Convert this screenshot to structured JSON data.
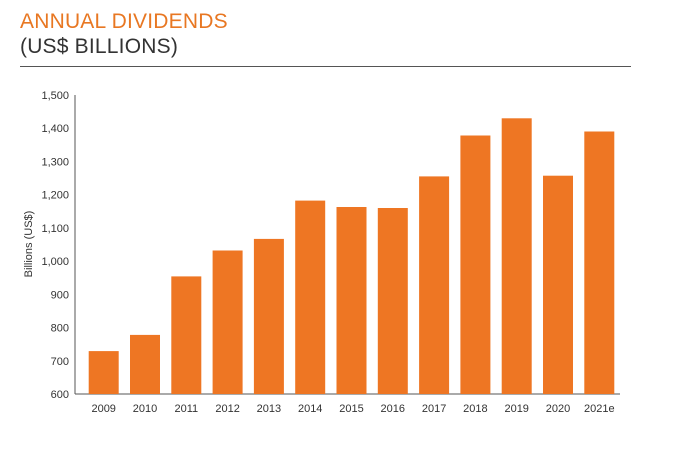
{
  "header": {
    "title": "ANNUAL DIVIDENDS",
    "subtitle": "(US$ BILLIONS)"
  },
  "colors": {
    "bar": "#ee7623",
    "title": "#e87722",
    "axis": "#333333"
  },
  "chart_data": {
    "type": "bar",
    "title": "ANNUAL DIVIDENDS (US$ BILLIONS)",
    "xlabel": "",
    "ylabel": "Billions (US$)",
    "ylim": [
      600,
      1500
    ],
    "yticks": [
      600,
      700,
      800,
      900,
      1000,
      1100,
      1200,
      1300,
      1400,
      1500
    ],
    "ytick_labels": [
      "600",
      "700",
      "800",
      "900",
      "1,000",
      "1,100",
      "1,200",
      "1,300",
      "1,400",
      "1,500"
    ],
    "categories": [
      "2009",
      "2010",
      "2011",
      "2012",
      "2013",
      "2014",
      "2015",
      "2016",
      "2017",
      "2018",
      "2019",
      "2020",
      "2021e"
    ],
    "values": [
      729,
      778,
      954,
      1032,
      1067,
      1182,
      1163,
      1160,
      1255,
      1378,
      1430,
      1257,
      1390
    ],
    "grid": false,
    "legend": "none"
  }
}
